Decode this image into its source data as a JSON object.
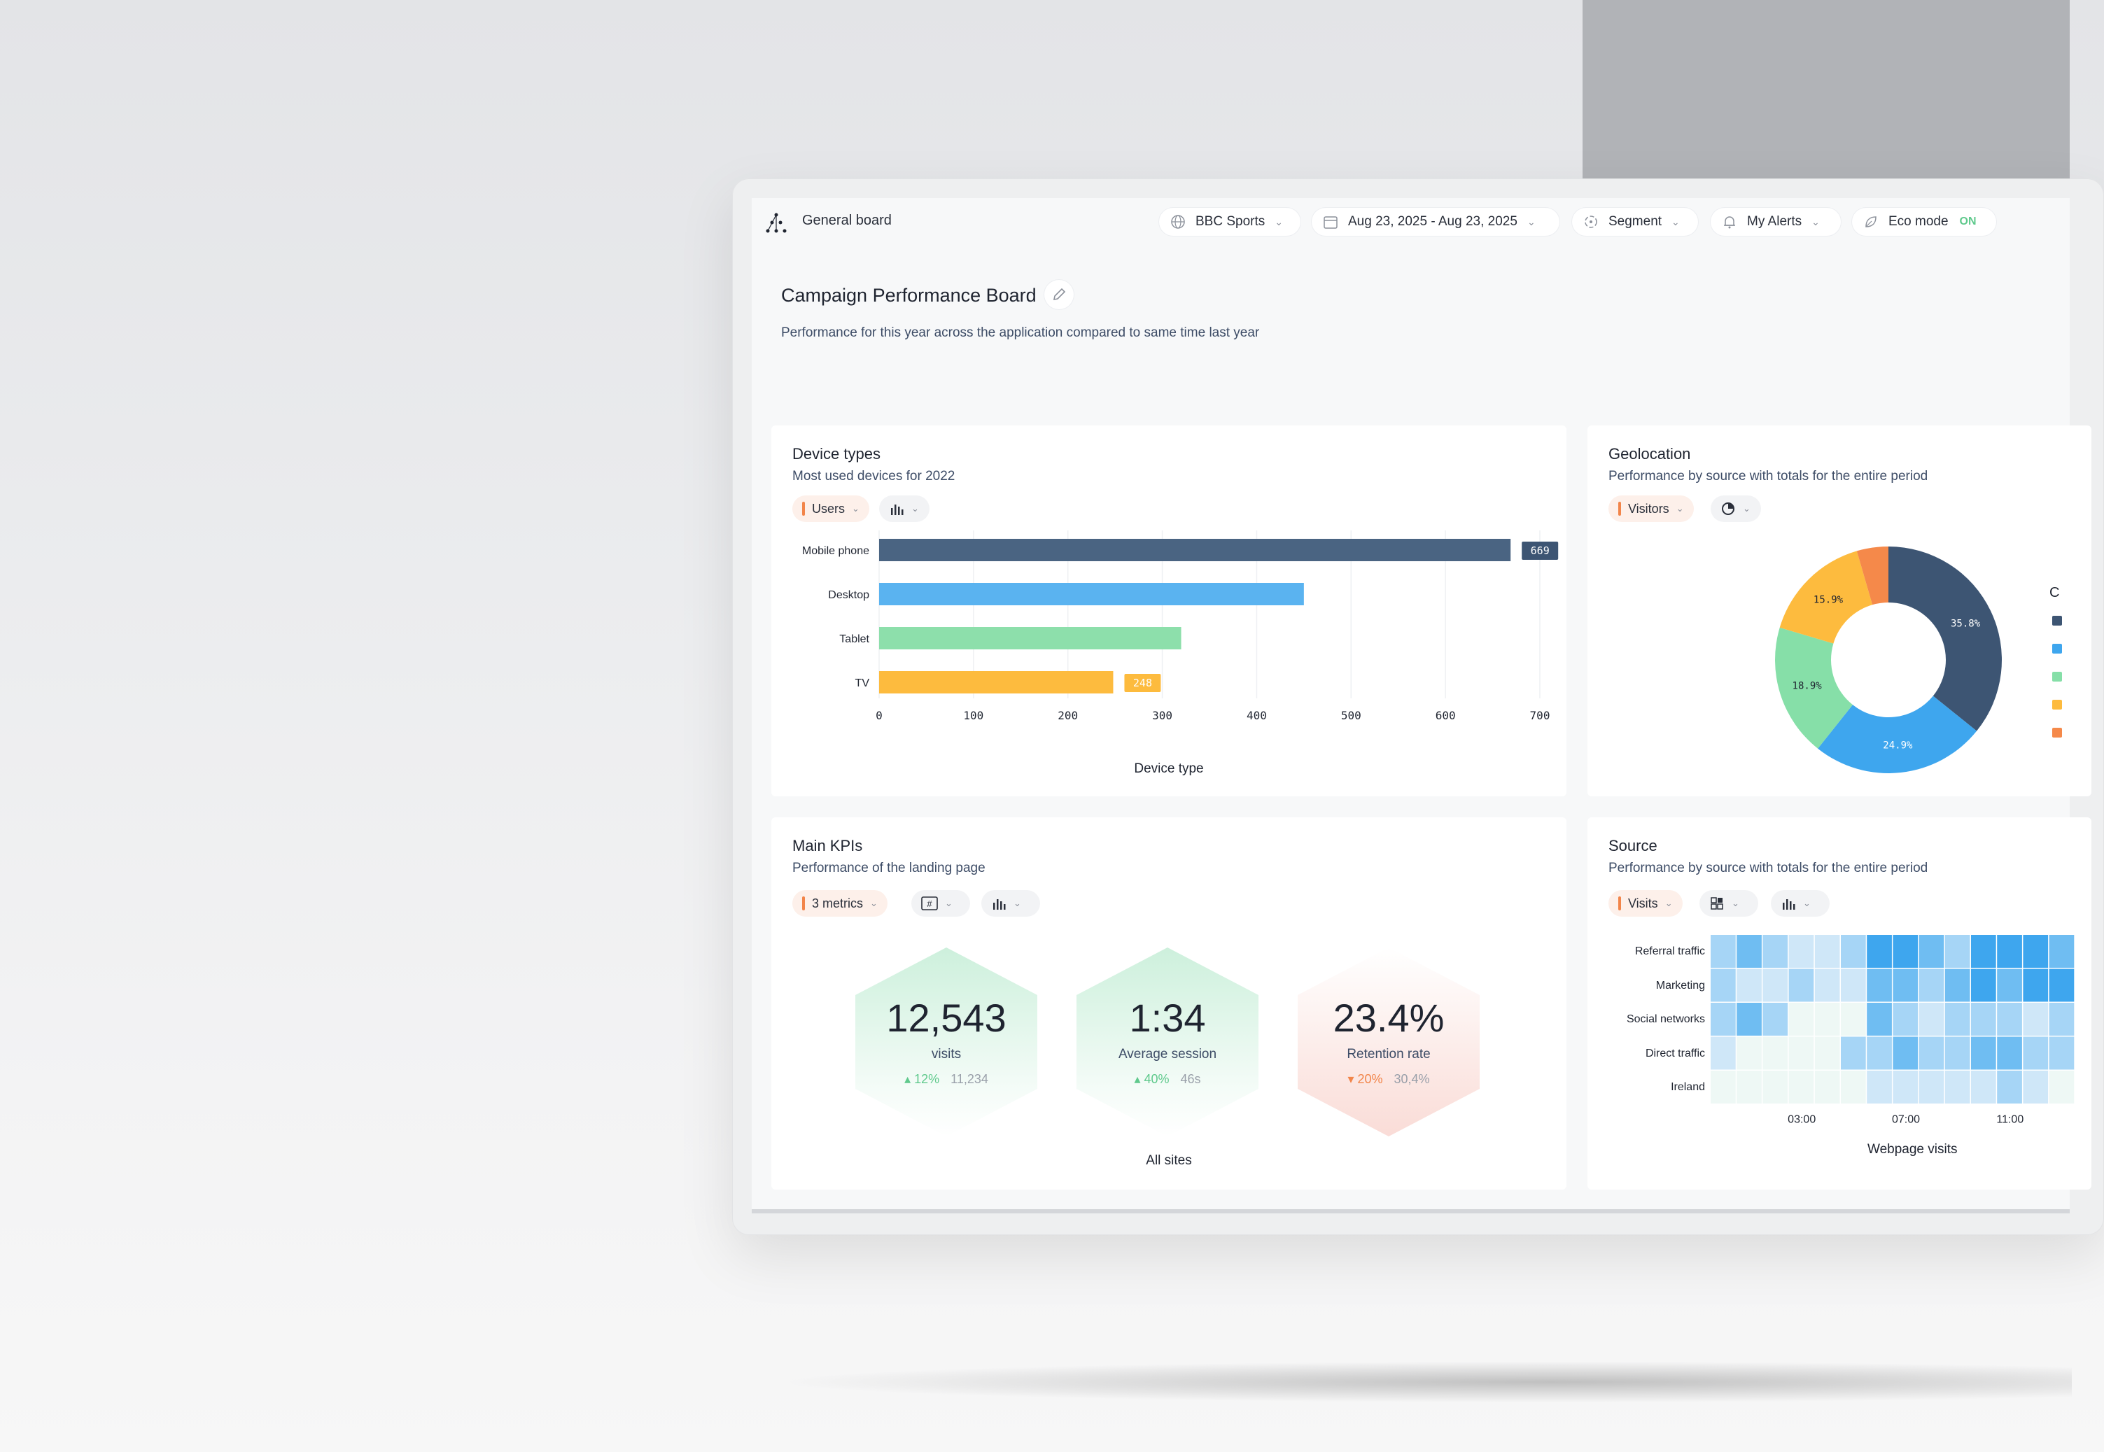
{
  "topbar": {
    "board_name": "General board",
    "site": "BBC Sports",
    "date_range": "Aug 23, 2025 - Aug 23, 2025",
    "segment": "Segment",
    "alerts": "My Alerts",
    "eco_mode": "Eco mode",
    "eco_state": "ON"
  },
  "page": {
    "title": "Campaign Performance Board",
    "subtitle": "Performance for this year across the application compared to same time last year"
  },
  "device_types": {
    "title": "Device types",
    "subtitle": "Most used devices for 2022",
    "metric": "Users",
    "footer": "Device type"
  },
  "geolocation": {
    "title": "Geolocation",
    "subtitle": "Performance by source with totals for the entire period",
    "metric": "Visitors",
    "legend_title_partial": "C"
  },
  "main_kpis": {
    "title": "Main KPIs",
    "subtitle": "Performance of the landing page",
    "metric": "3 metrics",
    "footer": "All sites",
    "items": [
      {
        "value": "12,543",
        "label": "visits",
        "delta": "12%",
        "previous": "11,234",
        "trend": "up"
      },
      {
        "value": "1:34",
        "label": "Average session",
        "delta": "40%",
        "previous": "46s",
        "trend": "up"
      },
      {
        "value": "23.4%",
        "label": "Retention rate",
        "delta": "20%",
        "previous": "30,4%",
        "trend": "down"
      }
    ]
  },
  "source": {
    "title": "Source",
    "subtitle": "Performance by source with totals for the entire period",
    "metric": "Visits",
    "footer": "Webpage visits",
    "rows": [
      "Referral traffic",
      "Marketing",
      "Social networks",
      "Direct traffic",
      "Ireland"
    ],
    "x_ticks": [
      "03:00",
      "07:00",
      "11:00"
    ]
  },
  "colors": {
    "navy": "#3d5573",
    "blue": "#3ea6ee",
    "green": "#86dfa8",
    "yellow": "#fdbb3e",
    "orange": "#f5894a"
  },
  "chart_data": [
    {
      "type": "bar",
      "orientation": "horizontal",
      "categories": [
        "Mobile phone",
        "Desktop",
        "Tablet",
        "TV"
      ],
      "values": [
        669,
        450,
        320,
        248
      ],
      "data_labels": [
        "669",
        "",
        "",
        "248"
      ],
      "xlabel": "Device type",
      "xticks": [
        "0",
        "100",
        "200",
        "300",
        "400",
        "500",
        "600",
        "700"
      ],
      "xlim": [
        0,
        700
      ],
      "colors": [
        "#4a6482",
        "#5ab3f0",
        "#8ddfab",
        "#fdbb3e"
      ]
    },
    {
      "type": "pie",
      "donut": true,
      "values": [
        35.8,
        24.9,
        18.9,
        15.9,
        4.5
      ],
      "labels": [
        "35.8%",
        "24.9%",
        "18.9%",
        "15.9%",
        ""
      ],
      "colors": [
        "#3d5573",
        "#3ea6ee",
        "#86dfa8",
        "#fdbb3e",
        "#f5894a"
      ]
    },
    {
      "type": "heatmap",
      "rows": [
        "Referral traffic",
        "Marketing",
        "Social networks",
        "Direct traffic",
        "Ireland"
      ],
      "x_ticks": [
        "03:00",
        "07:00",
        "11:00"
      ],
      "values": [
        [
          2,
          3,
          2,
          1,
          1,
          2,
          4,
          4,
          3,
          2,
          4,
          4,
          4,
          3
        ],
        [
          2,
          1,
          1,
          2,
          1,
          1,
          3,
          3,
          2,
          3,
          4,
          3,
          4,
          4
        ],
        [
          2,
          3,
          2,
          0,
          0,
          0,
          3,
          2,
          1,
          2,
          2,
          2,
          1,
          2
        ],
        [
          1,
          0,
          0,
          0,
          0,
          2,
          2,
          3,
          2,
          2,
          3,
          3,
          2,
          2
        ],
        [
          0,
          0,
          0,
          0,
          0,
          0,
          1,
          1,
          1,
          1,
          1,
          2,
          1,
          0
        ]
      ]
    }
  ]
}
